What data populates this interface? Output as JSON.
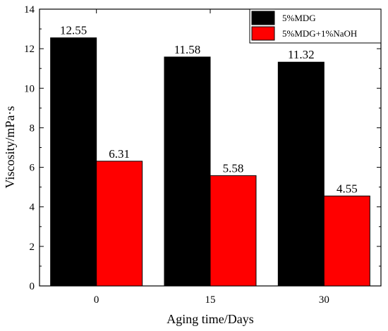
{
  "chart_data": {
    "type": "bar",
    "categories": [
      "0",
      "15",
      "30"
    ],
    "series": [
      {
        "name": "5%MDG",
        "values": [
          12.55,
          11.58,
          11.32
        ],
        "color": "#000000"
      },
      {
        "name": "5%MDG+1%NaOH",
        "values": [
          6.31,
          5.58,
          4.55
        ],
        "color": "#ff0000"
      }
    ],
    "data_labels": [
      [
        "12.55",
        "11.58",
        "11.32"
      ],
      [
        "6.31",
        "5.58",
        "4.55"
      ]
    ],
    "yticks": [
      "0",
      "2",
      "4",
      "6",
      "8",
      "10",
      "12",
      "14"
    ],
    "ylim": [
      0,
      14
    ],
    "xlabel": "Aging time/Days",
    "ylabel": "Viscosity/mPa·s",
    "legend_position": "top-right",
    "grid": false
  }
}
